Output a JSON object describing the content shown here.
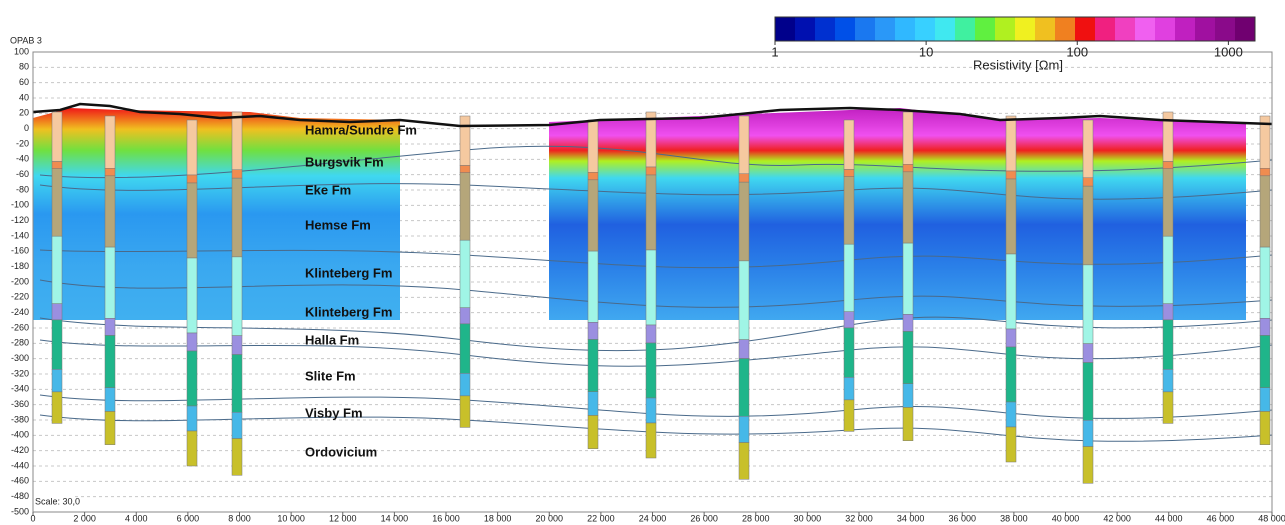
{
  "chart_data": {
    "type": "section",
    "title": "OPAB 3",
    "note": "Scale: 30,0",
    "xlim": [
      0,
      48000
    ],
    "ylim": [
      -500,
      100
    ],
    "xticks": [
      0,
      {
        "value": 2000,
        "label": "2 000"
      },
      {
        "value": 4000,
        "label": "4 000"
      },
      {
        "value": 6000,
        "label": "6 000"
      },
      {
        "value": 8000,
        "label": "8 000"
      },
      {
        "value": 10000,
        "label": "10 000"
      },
      {
        "value": 12000,
        "label": "12 000"
      },
      {
        "value": 14000,
        "label": "14 000"
      },
      {
        "value": 16000,
        "label": "16 000"
      },
      {
        "value": 18000,
        "label": "18 000"
      },
      {
        "value": 20000,
        "label": "20 000"
      },
      {
        "value": 22000,
        "label": "22 000"
      },
      {
        "value": 24000,
        "label": "24 000"
      },
      {
        "value": 26000,
        "label": "26 000"
      },
      {
        "value": 28000,
        "label": "28 000"
      },
      {
        "value": 30000,
        "label": "30 000"
      },
      {
        "value": 32000,
        "label": "32 000"
      },
      {
        "value": 34000,
        "label": "34 000"
      },
      {
        "value": 36000,
        "label": "36 000"
      },
      {
        "value": 38000,
        "label": "38 000"
      },
      {
        "value": 40000,
        "label": "40 000"
      },
      {
        "value": 42000,
        "label": "42 000"
      },
      {
        "value": 44000,
        "label": "44 000"
      },
      {
        "value": 46000,
        "label": "46 000"
      },
      {
        "value": 48000,
        "label": "48 000"
      }
    ],
    "yticks": [
      100,
      80,
      60,
      40,
      20,
      0,
      -20,
      -40,
      -60,
      -80,
      -100,
      -120,
      -140,
      -160,
      -180,
      -200,
      -220,
      -240,
      -260,
      -280,
      -300,
      -320,
      -340,
      -360,
      -380,
      -400,
      -420,
      -440,
      -460,
      -480,
      -500
    ],
    "grid": true,
    "annotations": [
      "Hamra/Sundre Fm",
      "Burgsvik Fm",
      "Eke Fm",
      "Hemse Fm",
      "Klinteberg Fm",
      "Klinteberg Fm",
      "Halla Fm",
      "Slite Fm",
      "Visby Fm",
      "Ordovicium"
    ],
    "colorbar": {
      "label": "Resistivity [Ωm]",
      "log": true,
      "range": [
        1,
        1500
      ],
      "ticks": [
        1,
        10,
        100,
        1000
      ],
      "colors": [
        "#00008b",
        "#0010b0",
        "#0030d0",
        "#0050e8",
        "#1a78f0",
        "#2a98f8",
        "#30b8ff",
        "#38d0ff",
        "#40e8f0",
        "#40f0a0",
        "#60f040",
        "#b0f020",
        "#f0f020",
        "#f0c020",
        "#f08020",
        "#f01010",
        "#f02080",
        "#f040c0",
        "#f060f0",
        "#e040e0",
        "#c020c0",
        "#a010a0",
        "#8a0a8a",
        "#700070"
      ]
    }
  }
}
